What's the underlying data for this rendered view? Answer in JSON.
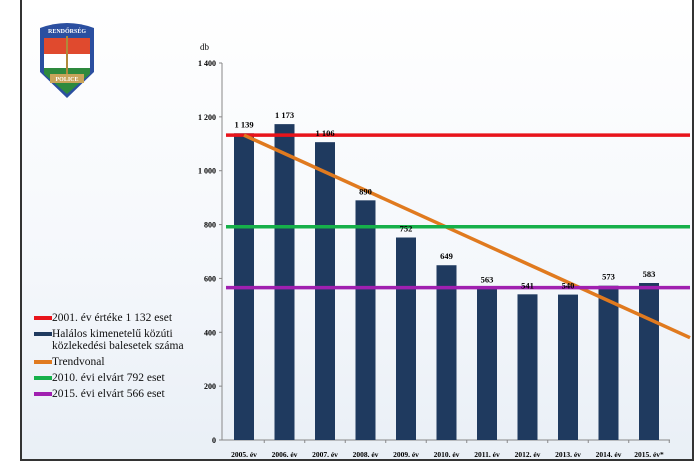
{
  "logo": {
    "top_text": "RENDŐRSÉG",
    "bottom_text": "POLICE"
  },
  "chart_data": {
    "type": "bar",
    "title": "",
    "ylabel": "db",
    "xlabel": "",
    "ylim": [
      0,
      1400
    ],
    "yticks": [
      0,
      200,
      400,
      600,
      800,
      1000,
      1200,
      1400
    ],
    "ytick_labels": [
      "0",
      "200",
      "400",
      "600",
      "800",
      "1 000",
      "1 200",
      "1 400"
    ],
    "categories": [
      "2005. év",
      "2006. év",
      "2007. év",
      "2008. év",
      "2009. év",
      "2010. év",
      "2011. év",
      "2012. év",
      "2013. év",
      "2014. év",
      "2015. év*"
    ],
    "series": [
      {
        "name": "Halálos kimenetelű közúti közlekedési balesetek száma",
        "type": "bar",
        "color": "#1f3a5f",
        "values": [
          1139,
          1173,
          1106,
          890,
          752,
          649,
          563,
          541,
          540,
          573,
          583
        ],
        "labels": [
          "1 139",
          "1 173",
          "1 106",
          "890",
          "752",
          "649",
          "563",
          "541",
          "540",
          "573",
          "583"
        ]
      },
      {
        "name": "2001. év értéke 1 132 eset",
        "type": "hline",
        "value": 1132,
        "color": "#e8141b"
      },
      {
        "name": "Trendvonal",
        "type": "trend",
        "start": 1132,
        "end": 380,
        "color": "#e07a1f"
      },
      {
        "name": "2010. évi elvárt 792 eset",
        "type": "hline",
        "value": 792,
        "color": "#16b04a"
      },
      {
        "name": "2015. évi elvárt 566 eset",
        "type": "hline",
        "value": 566,
        "color": "#a020b0"
      }
    ],
    "legend_position": "left"
  },
  "legend": [
    {
      "label": "2001. év értéke 1 132 eset",
      "color": "#e8141b"
    },
    {
      "label": "Halálos kimenetelű közúti közlekedési balesetek száma",
      "color": "#1f3a5f"
    },
    {
      "label": "Trendvonal",
      "color": "#e07a1f"
    },
    {
      "label": "2010. évi elvárt   792 eset",
      "color": "#16b04a"
    },
    {
      "label": "2015. évi elvárt   566 eset",
      "color": "#a020b0"
    }
  ]
}
